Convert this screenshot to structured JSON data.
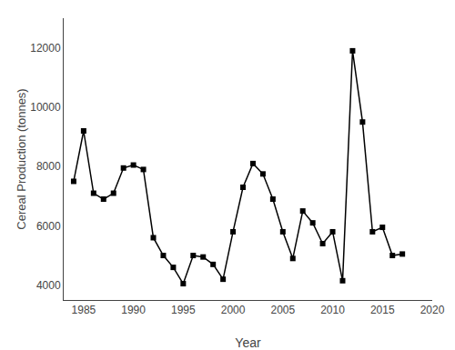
{
  "chart_data": {
    "type": "line",
    "x": [
      1984,
      1985,
      1986,
      1987,
      1988,
      1989,
      1990,
      1991,
      1992,
      1993,
      1994,
      1995,
      1996,
      1997,
      1998,
      1999,
      2000,
      2001,
      2002,
      2003,
      2004,
      2005,
      2006,
      2007,
      2008,
      2009,
      2010,
      2011,
      2012,
      2013,
      2014,
      2015,
      2016,
      2017
    ],
    "values": [
      7500,
      9200,
      7100,
      6900,
      7100,
      7950,
      8050,
      7900,
      5600,
      5000,
      4600,
      4050,
      5000,
      4950,
      4700,
      4200,
      5800,
      7300,
      8100,
      7750,
      6900,
      5800,
      4900,
      6500,
      6100,
      5400,
      5800,
      4150,
      11900,
      9500,
      5800,
      5950,
      5000,
      5050
    ],
    "xlabel": "Year",
    "ylabel": "Cereal Production (tonnes)",
    "xlim": [
      1983,
      2020
    ],
    "ylim": [
      3500,
      13000
    ],
    "xticks": [
      1985,
      1990,
      1995,
      2000,
      2005,
      2010,
      2015,
      2020
    ],
    "yticks": [
      4000,
      6000,
      8000,
      10000,
      12000
    ],
    "color": "#000000",
    "marker": "square",
    "line_style": "solid",
    "grid": false
  }
}
